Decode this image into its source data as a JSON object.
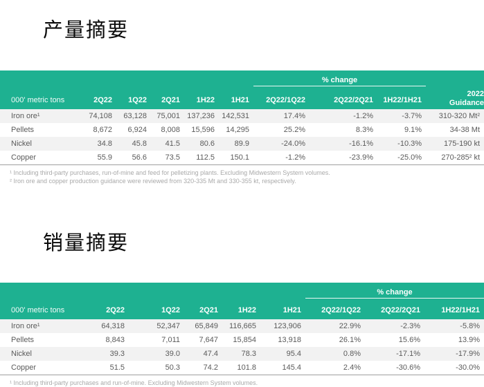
{
  "colors": {
    "header_green": "#1eb191",
    "row_stripe": "#f2f2f2",
    "body_text": "#5a5a5a",
    "footnote_text": "#a9a9a9"
  },
  "sections": {
    "production": {
      "title": "产量摘要",
      "unit_label": "000' metric tons",
      "change_group_label": "% change",
      "guidance_label": "2022 Guidance",
      "columns": [
        "2Q22",
        "1Q22",
        "2Q21",
        "1H22",
        "1H21",
        "2Q22/1Q22",
        "2Q22/2Q21",
        "1H22/1H21"
      ],
      "rows": [
        {
          "label": "Iron ore¹",
          "values": [
            "74,108",
            "63,128",
            "75,001",
            "137,236",
            "142,531",
            "17.4%",
            "-1.2%",
            "-3.7%",
            "310-320 Mt²"
          ]
        },
        {
          "label": "Pellets",
          "values": [
            "8,672",
            "6,924",
            "8,008",
            "15,596",
            "14,295",
            "25.2%",
            "8.3%",
            "9.1%",
            "34-38 Mt"
          ]
        },
        {
          "label": "Nickel",
          "values": [
            "34.8",
            "45.8",
            "41.5",
            "80.6",
            "89.9",
            "-24.0%",
            "-16.1%",
            "-10.3%",
            "175-190 kt"
          ]
        },
        {
          "label": "Copper",
          "values": [
            "55.9",
            "56.6",
            "73.5",
            "112.5",
            "150.1",
            "-1.2%",
            "-23.9%",
            "-25.0%",
            "270-285² kt"
          ]
        }
      ],
      "footnotes": [
        "¹ Including third-party purchases, run-of-mine and feed for pelletizing plants. Excluding Midwestern System volumes.",
        "² Iron ore and copper production guidance were reviewed from 320-335 Mt and 330-355 kt, respectively."
      ]
    },
    "sales": {
      "title": "销量摘要",
      "unit_label": "000' metric tons",
      "change_group_label": "% change",
      "columns": [
        "2Q22",
        "1Q22",
        "2Q21",
        "1H22",
        "1H21",
        "2Q22/1Q22",
        "2Q22/2Q21",
        "1H22/1H21"
      ],
      "rows": [
        {
          "label": "Iron ore¹",
          "values": [
            "64,318",
            "52,347",
            "65,849",
            "116,665",
            "123,906",
            "22.9%",
            "-2.3%",
            "-5.8%"
          ]
        },
        {
          "label": "Pellets",
          "values": [
            "8,843",
            "7,011",
            "7,647",
            "15,854",
            "13,918",
            "26.1%",
            "15.6%",
            "13.9%"
          ]
        },
        {
          "label": "Nickel",
          "values": [
            "39.3",
            "39.0",
            "47.4",
            "78.3",
            "95.4",
            "0.8%",
            "-17.1%",
            "-17.9%"
          ]
        },
        {
          "label": "Copper",
          "values": [
            "51.5",
            "50.3",
            "74.2",
            "101.8",
            "145.4",
            "2.4%",
            "-30.6%",
            "-30.0%"
          ]
        }
      ],
      "footnotes": [
        "¹ Including third-party purchases and run-of-mine. Excluding Midwestern System volumes."
      ]
    }
  }
}
